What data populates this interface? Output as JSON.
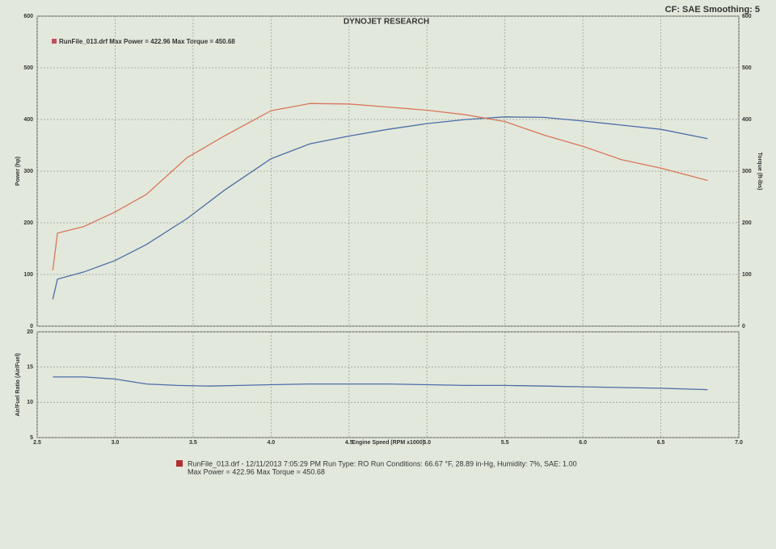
{
  "header": {
    "title": "DYNOJET RESEARCH",
    "settings": "CF: SAE  Smoothing: 5"
  },
  "chart_data": [
    {
      "type": "line",
      "legend_text": "RunFile_013.drf Max Power = 422.96     Max Torque = 450.68",
      "y_label": "Power (hp)",
      "y2_label": "Torque (ft-lbs)",
      "x": [
        2.6,
        2.63,
        2.8,
        3.0,
        3.2,
        3.46,
        3.7,
        4.0,
        4.25,
        4.5,
        4.75,
        5.0,
        5.25,
        5.5,
        5.75,
        6.0,
        6.25,
        6.5,
        6.8
      ],
      "xlim": [
        2.5,
        7.0
      ],
      "ylim": [
        0,
        600
      ],
      "yticks": [
        0,
        100,
        200,
        300,
        400,
        500,
        600
      ],
      "y2lim": [
        0,
        600
      ],
      "y2ticks": [
        0,
        100,
        200,
        300,
        400,
        500,
        600
      ],
      "grid": true,
      "series": [
        {
          "color": "#4a6ea8",
          "values": [
            52,
            91,
            105,
            127,
            158,
            208,
            263,
            324,
            353,
            368,
            381,
            392,
            400,
            405,
            404,
            397,
            389,
            381,
            363
          ]
        },
        {
          "color": "#d8775a",
          "axis": "y2",
          "values": [
            108,
            180,
            193,
            221,
            255,
            326,
            368,
            417,
            431,
            430,
            424,
            418,
            409,
            396,
            370,
            348,
            322,
            306,
            282
          ]
        }
      ]
    },
    {
      "type": "line",
      "y_label": "Air/Fuel Ratio (Air/Fuel)",
      "x_label": "Engine Speed (RPM x1000)",
      "x": [
        2.6,
        2.8,
        3.0,
        3.2,
        3.4,
        3.6,
        3.8,
        4.0,
        4.25,
        4.5,
        4.75,
        5.0,
        5.25,
        5.5,
        5.75,
        6.0,
        6.25,
        6.5,
        6.8
      ],
      "xlim": [
        2.5,
        7.0
      ],
      "xticks": [
        2.5,
        {
          "value": 3,
          "label": "3.0"
        },
        3.5,
        {
          "value": 4,
          "label": "4.0"
        },
        4.5,
        {
          "value": 5,
          "label": "5.0"
        },
        5.5,
        {
          "value": 6,
          "label": "6.0"
        },
        6.5,
        {
          "value": 7,
          "label": "7.0"
        }
      ],
      "ylim": [
        5,
        20
      ],
      "yticks": [
        5,
        10,
        15,
        20
      ],
      "grid": true,
      "series": [
        {
          "color": "#4a6ea8",
          "values": [
            13.6,
            13.6,
            13.3,
            12.6,
            12.4,
            12.3,
            12.4,
            12.5,
            12.6,
            12.6,
            12.6,
            12.5,
            12.4,
            12.4,
            12.3,
            12.2,
            12.1,
            12.0,
            11.8
          ]
        }
      ]
    }
  ],
  "footer": {
    "line1": "RunFile_013.drf - 12/11/2013 7:05:29 PM  Run Type: RO  Run Conditions: 66.67 °F, 28.89 in-Hg,  Humidity:  7%,  SAE: 1.00",
    "line2": "Max Power = 422.96  Max Torque = 450.68"
  }
}
